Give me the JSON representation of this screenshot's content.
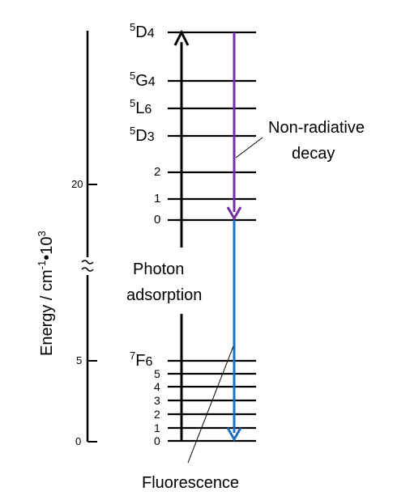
{
  "colors": {
    "line": "#000000",
    "excitation_arrow": "#000000",
    "non_radiative_arrow": "#7030a0",
    "fluorescence_arrow": "#1f6fbf"
  },
  "axis": {
    "label_main": "Energy / cm",
    "label_exp": "-1",
    "label_dot": "•",
    "label_unit": "10",
    "label_unit_exp": "3",
    "ticks": [
      {
        "label": "20",
        "value": 20
      },
      {
        "label": "5",
        "value": 5
      },
      {
        "label": "0",
        "value": 0
      }
    ],
    "break_symbol": "~"
  },
  "upper_levels": {
    "named": [
      {
        "sup": "5",
        "name": "D",
        "sub": "4"
      },
      {
        "sup": "5",
        "name": "G",
        "sub": "4"
      },
      {
        "sup": "5",
        "name": "L",
        "sub": "6"
      },
      {
        "sup": "5",
        "name": "D",
        "sub": "3"
      }
    ],
    "numbered": [
      "2",
      "1",
      "0"
    ]
  },
  "lower_levels": {
    "named": {
      "sup": "7",
      "name": "F",
      "sub": "6"
    },
    "numbered": [
      "5",
      "4",
      "3",
      "2",
      "1",
      "0"
    ]
  },
  "labels": {
    "photon_line1": "Photon",
    "photon_line2": "adsorption",
    "nonrad_line1": "Non-radiative",
    "nonrad_line2": "decay",
    "fluorescence": "Fluorescence"
  }
}
